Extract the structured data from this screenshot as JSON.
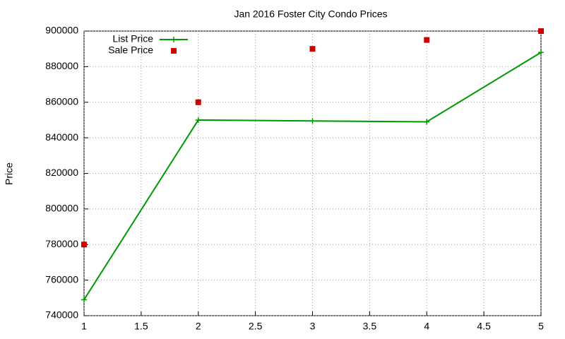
{
  "chart_data": {
    "type": "line",
    "title": "Jan 2016 Foster City Condo Prices",
    "y_label": "Price",
    "x": [
      1,
      2,
      3,
      4,
      5
    ],
    "series": [
      {
        "name": "List Price",
        "color": "#009900",
        "mode": "lines+points",
        "values": [
          749000,
          850000,
          849500,
          849000,
          888000
        ]
      },
      {
        "name": "Sale Price",
        "color": "#cc0000",
        "mode": "points",
        "values": [
          780000,
          860000,
          890000,
          895000,
          900000
        ]
      }
    ],
    "xlim": [
      1,
      5
    ],
    "xticks": [
      1,
      1.5,
      2,
      2.5,
      3,
      3.5,
      4,
      4.5,
      5
    ],
    "ylim": [
      740000,
      900000
    ],
    "yticks": [
      740000,
      760000,
      780000,
      800000,
      820000,
      840000,
      860000,
      880000,
      900000
    ],
    "grid": true,
    "legend": "top-left"
  }
}
